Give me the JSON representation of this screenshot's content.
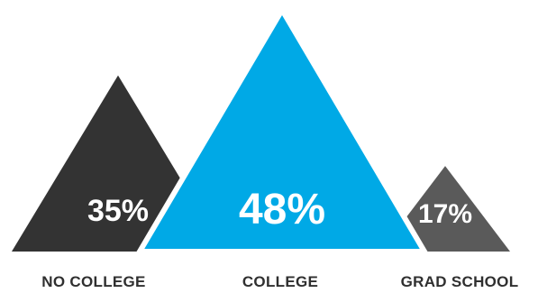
{
  "chart_data": {
    "type": "bar",
    "categories": [
      "NO COLLEGE",
      "COLLEGE",
      "GRAD SCHOOL"
    ],
    "values": [
      35,
      48,
      17
    ],
    "value_labels": [
      "35%",
      "48%",
      "17%"
    ],
    "colors": [
      "#333333",
      "#00a9e6",
      "#5a5a5a"
    ],
    "legend": "none",
    "grid": false
  }
}
